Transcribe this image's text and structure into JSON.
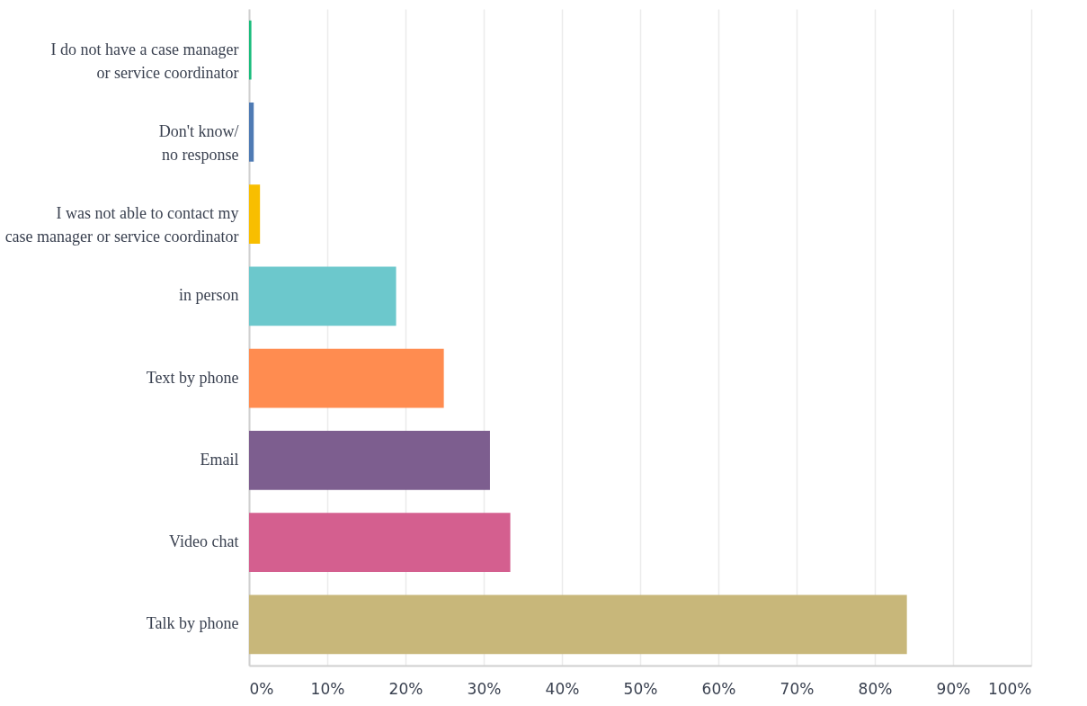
{
  "chart_data": {
    "type": "bar",
    "orientation": "horizontal",
    "categories": [
      "I do not have a case manager\nor service coordinator",
      "Don't know/\nno response",
      "I was not able to contact my\ncase manager or service coordinator",
      "in person",
      "Text by phone",
      "Email",
      "Video chat",
      "Talk by phone"
    ],
    "values": [
      0.3,
      0.6,
      1.4,
      18.8,
      24.9,
      30.8,
      33.4,
      84.1
    ],
    "colors": [
      "#1abc7c",
      "#4f7bb4",
      "#f8be00",
      "#6cc8cc",
      "#ff8c50",
      "#7d5e8f",
      "#d45f8f",
      "#c8b77a"
    ],
    "xlim": [
      0,
      100
    ],
    "xticks": [
      {
        "value": 0,
        "label": "0%"
      },
      {
        "value": 10,
        "label": "10%"
      },
      {
        "value": 20,
        "label": "20%"
      },
      {
        "value": 30,
        "label": "30%"
      },
      {
        "value": 40,
        "label": "40%"
      },
      {
        "value": 50,
        "label": "50%"
      },
      {
        "value": 60,
        "label": "60%"
      },
      {
        "value": 70,
        "label": "70%"
      },
      {
        "value": 80,
        "label": "80%"
      },
      {
        "value": 90,
        "label": "90%"
      },
      {
        "value": 100,
        "label": "100%"
      }
    ],
    "grid": "x"
  }
}
